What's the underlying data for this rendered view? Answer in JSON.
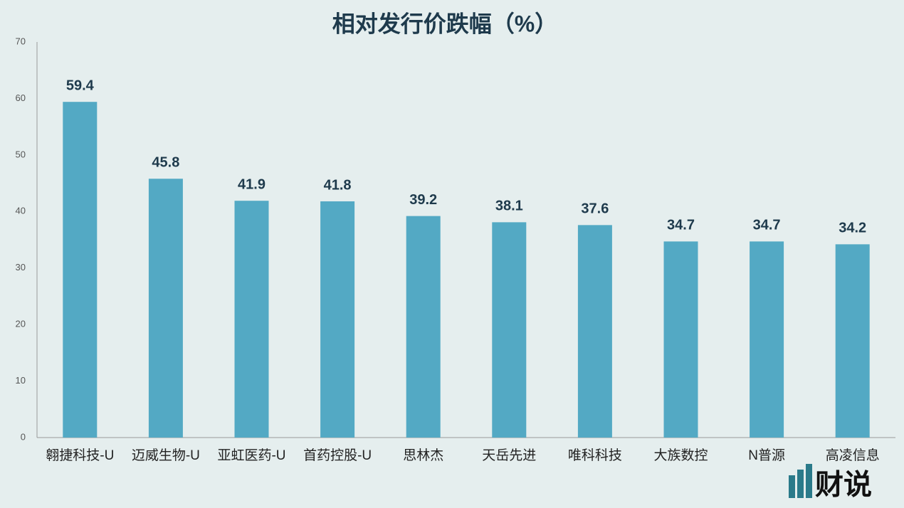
{
  "chart_data": {
    "type": "bar",
    "title": "相对发行价跌幅（%）",
    "categories": [
      "翱捷科技-U",
      "迈威生物-U",
      "亚虹医药-U",
      "首药控股-U",
      "思林杰",
      "天岳先进",
      "唯科科技",
      "大族数控",
      "N普源",
      "高凌信息"
    ],
    "values": [
      59.4,
      45.8,
      41.9,
      41.8,
      39.2,
      38.1,
      37.6,
      34.7,
      34.7,
      34.2
    ],
    "color": "#53a9c4",
    "ylim": [
      0,
      70
    ],
    "yticks": [
      0,
      10,
      20,
      30,
      40,
      50,
      60,
      70
    ],
    "grid": false
  },
  "logo": "财说"
}
